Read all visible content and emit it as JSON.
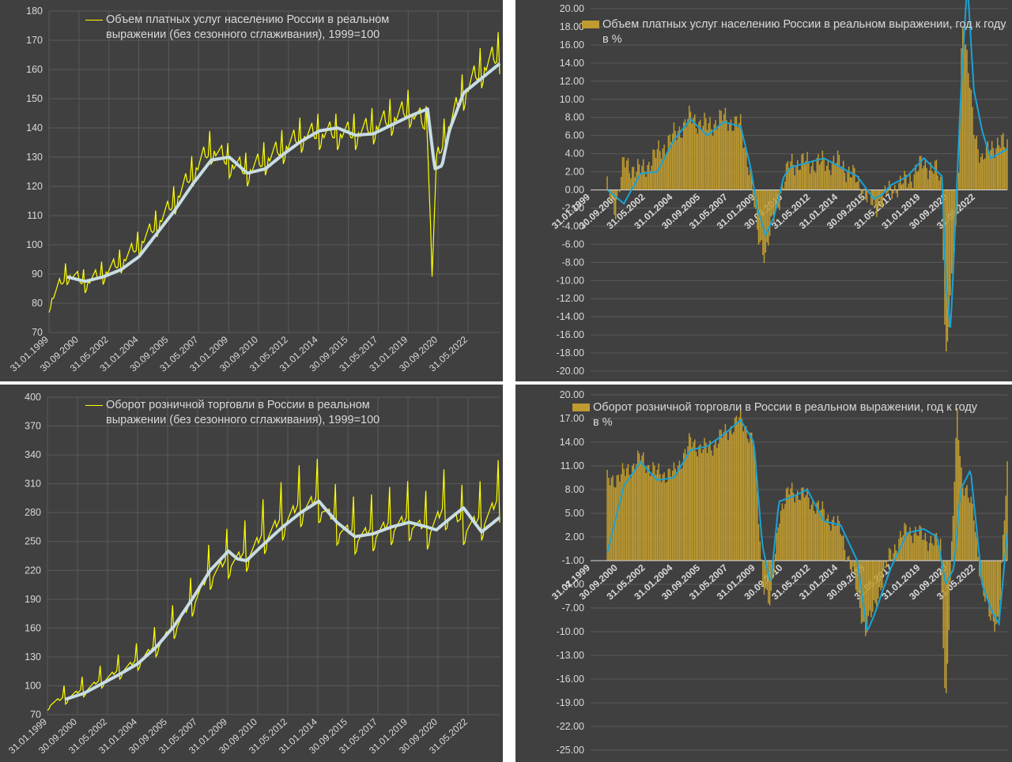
{
  "colors": {
    "background": "#404040",
    "grid": "#5a5a5a",
    "text": "#d9d9d9",
    "level_series": "#ffff00",
    "trend_series": "#c8dde3",
    "bars": "#bf9b30",
    "trend_yoy": "#1aa3d4"
  },
  "chart_data": [
    {
      "id": "services_level",
      "type": "line",
      "x_tick_labels": [
        "31.01.1999",
        "30.09.2000",
        "31.05.2002",
        "31.01.2004",
        "30.09.2005",
        "31.05.2007",
        "31.01.2009",
        "30.09.2010",
        "31.05.2012",
        "31.01.2014",
        "30.09.2015",
        "31.05.2017",
        "31.01.2019",
        "30.09.2020",
        "31.05.2022"
      ],
      "ylim": [
        70,
        180
      ],
      "y_tick_labels": [
        "70",
        "80",
        "90",
        "100",
        "110",
        "120",
        "130",
        "140",
        "150",
        "160",
        "170",
        "180"
      ],
      "grid": true,
      "legend_position": "top-left",
      "series": [
        {
          "name": "Объем платных услуг населению России в реальном выражении (без сезонного сглаживания), 1999=100",
          "kind": "monthly_raw",
          "x": [
            1999.0,
            2000.0,
            2001.0,
            2002.0,
            2003.0,
            2004.0,
            2005.0,
            2006.0,
            2007.0,
            2008.0,
            2009.0,
            2010.0,
            2011.0,
            2012.0,
            2013.0,
            2014.0,
            2015.0,
            2016.0,
            2017.0,
            2018.0,
            2019.0,
            2020.0,
            2020.25,
            2020.5,
            2021.0,
            2022.0,
            2023.0,
            2024.0
          ],
          "values": [
            80,
            90,
            87,
            90,
            94,
            100,
            107,
            115,
            125,
            133,
            128,
            125,
            129,
            133,
            137,
            138,
            138,
            138,
            140,
            143,
            146,
            140,
            90,
            128,
            138,
            152,
            160,
            165
          ]
        },
        {
          "name": "",
          "kind": "trend",
          "x": [
            2000.0,
            2001.0,
            2002.0,
            2003.0,
            2004.0,
            2005.0,
            2006.0,
            2007.0,
            2008.0,
            2009.0,
            2010.0,
            2011.0,
            2012.0,
            2013.0,
            2014.0,
            2015.0,
            2016.0,
            2017.0,
            2018.0,
            2019.0,
            2020.0,
            2020.4,
            2020.8,
            2021.2,
            2022.0,
            2023.0,
            2024.0
          ],
          "values": [
            89,
            87.5,
            89,
            91.5,
            96,
            104,
            112,
            121,
            129,
            130,
            124.5,
            126,
            131,
            135.5,
            139,
            140,
            137.5,
            138,
            141,
            144,
            146.5,
            126,
            127,
            139,
            152,
            157,
            162
          ]
        }
      ]
    },
    {
      "id": "services_yoy",
      "type": "bar",
      "x_tick_labels": [
        "31.01.1999",
        "30.09.2000",
        "31.05.2002",
        "31.01.2004",
        "30.09.2005",
        "31.05.2007",
        "31.01.2009",
        "30.09.2010",
        "31.05.2012",
        "31.01.2014",
        "30.09.2015",
        "31.05.2017",
        "31.01.2019",
        "30.09.2020",
        "31.05.2022"
      ],
      "ylim": [
        -20,
        20
      ],
      "y_tick_labels": [
        "-20.00",
        "-18.00",
        "-16.00",
        "-14.00",
        "-12.00",
        "-10.00",
        "-8.00",
        "-6.00",
        "-4.00",
        "-2.00",
        "0.00",
        "2.00",
        "4.00",
        "6.00",
        "8.00",
        "10.00",
        "12.00",
        "14.00",
        "16.00",
        "18.00",
        "20.00"
      ],
      "grid": true,
      "legend_position": "top-left",
      "series": [
        {
          "name": "Объем платных услуг населению России в реальном выражении, год к году в %",
          "kind": "bars",
          "x": [
            2000.0,
            2000.5,
            2001.0,
            2002.0,
            2003.0,
            2004.0,
            2005.0,
            2006.0,
            2007.0,
            2008.0,
            2008.6,
            2009.0,
            2009.5,
            2010.0,
            2010.6,
            2011.0,
            2012.0,
            2013.0,
            2014.0,
            2015.0,
            2016.0,
            2016.5,
            2017.0,
            2018.0,
            2019.0,
            2019.8,
            2020.1,
            2020.3,
            2020.6,
            2021.0,
            2021.3,
            2021.6,
            2022.0,
            2022.5,
            2023.0,
            2024.0
          ],
          "values": [
            0,
            -2,
            3,
            2,
            4,
            6,
            8,
            7,
            8,
            7,
            2,
            -5,
            -7,
            -3,
            1,
            3,
            3,
            3,
            3,
            1,
            -2,
            -1,
            0,
            1,
            3,
            2,
            0,
            -19,
            -12,
            -3,
            19,
            14,
            7,
            3,
            5,
            5
          ]
        },
        {
          "name": "",
          "kind": "trend",
          "x": [
            2000.0,
            2001.0,
            2002.0,
            2003.0,
            2004.0,
            2005.0,
            2006.0,
            2007.0,
            2008.0,
            2008.6,
            2009.0,
            2009.5,
            2010.0,
            2010.6,
            2011.0,
            2012.0,
            2013.0,
            2014.0,
            2015.0,
            2016.0,
            2016.5,
            2017.0,
            2018.0,
            2019.0,
            2019.8,
            2020.1,
            2020.3,
            2020.6,
            2020.85,
            2021.2,
            2021.6,
            2022.0,
            2022.5,
            2023.0,
            2024.0
          ],
          "values": [
            0,
            -1.5,
            1.8,
            2,
            5.5,
            7.8,
            6,
            7.5,
            7,
            2.5,
            -2,
            -5,
            -3,
            1.5,
            2.5,
            3,
            3.5,
            2.5,
            1.5,
            -1,
            -0.5,
            0.5,
            1.5,
            3.5,
            2,
            1.5,
            -10,
            -15.5,
            -5,
            10,
            23,
            11,
            6.5,
            3.5,
            4.5
          ]
        }
      ]
    },
    {
      "id": "retail_level",
      "type": "line",
      "x_tick_labels": [
        "31.01.1999",
        "30.09.2000",
        "31.05.2002",
        "31.01.2004",
        "30.09.2005",
        "31.05.2007",
        "31.01.2009",
        "30.09.2010",
        "31.05.2012",
        "31.01.2014",
        "30.09.2015",
        "31.05.2017",
        "31.01.2019",
        "30.09.2020",
        "31.05.2022"
      ],
      "ylim": [
        70,
        400
      ],
      "y_tick_labels": [
        "70",
        "100",
        "130",
        "160",
        "190",
        "220",
        "250",
        "280",
        "310",
        "340",
        "370",
        "400"
      ],
      "grid": true,
      "legend_position": "top-left",
      "series": [
        {
          "name": "Оборот розничной торговли в России в реальном выражении (без сезонного сглаживания), 1999=100",
          "kind": "monthly_raw",
          "x": [
            1999.0,
            2000.0,
            2001.0,
            2002.0,
            2003.0,
            2004.0,
            2005.0,
            2006.0,
            2007.0,
            2008.0,
            2009.0,
            2010.0,
            2011.0,
            2012.0,
            2013.0,
            2014.0,
            2015.0,
            2016.0,
            2017.0,
            2018.0,
            2019.0,
            2020.0,
            2021.0,
            2022.0,
            2023.0,
            2024.0
          ],
          "values": [
            80,
            87,
            95,
            105,
            115,
            125,
            140,
            160,
            185,
            215,
            228,
            235,
            255,
            270,
            285,
            290,
            265,
            255,
            258,
            265,
            270,
            260,
            282,
            265,
            270,
            290
          ]
        },
        {
          "name": "",
          "kind": "trend",
          "x": [
            2000.0,
            2001.0,
            2002.0,
            2003.0,
            2004.0,
            2005.0,
            2006.0,
            2007.0,
            2008.0,
            2009.0,
            2009.5,
            2010.0,
            2011.0,
            2012.0,
            2013.0,
            2014.0,
            2015.0,
            2016.0,
            2017.0,
            2018.0,
            2019.0,
            2020.0,
            2020.5,
            2021.0,
            2022.0,
            2023.0,
            2024.0
          ],
          "values": [
            86,
            92,
            102,
            112,
            123,
            140,
            162,
            190,
            220,
            240,
            232,
            230,
            248,
            265,
            280,
            292,
            270,
            255,
            258,
            265,
            270,
            265,
            262,
            270,
            285,
            260,
            275
          ]
        }
      ]
    },
    {
      "id": "retail_yoy",
      "type": "bar",
      "x_tick_labels": [
        "31.01.1999",
        "30.09.2000",
        "31.05.2002",
        "31.01.2004",
        "30.09.2005",
        "31.05.2007",
        "31.01.2009",
        "30.09.2010",
        "31.05.2012",
        "31.01.2014",
        "30.09.2015",
        "31.05.2017",
        "31.01.2019",
        "30.09.2020",
        "31.05.2022"
      ],
      "ylim": [
        -25,
        20
      ],
      "y_tick_labels": [
        "-25.00",
        "-22.00",
        "-19.00",
        "-16.00",
        "-13.00",
        "-10.00",
        "-7.00",
        "-4.00",
        "-1.00",
        "2.00",
        "5.00",
        "8.00",
        "11.00",
        "14.00",
        "17.00",
        "20.00"
      ],
      "grid": true,
      "legend_position": "top-left",
      "series": [
        {
          "name": "Оборот розничной торговли в России в реальном выражении, год к году в %",
          "kind": "bars",
          "x": [
            2000.0,
            2001.0,
            2002.0,
            2003.0,
            2004.0,
            2005.0,
            2006.0,
            2007.0,
            2008.0,
            2008.8,
            2009.3,
            2009.8,
            2010.3,
            2011.0,
            2012.0,
            2013.0,
            2014.0,
            2015.0,
            2015.5,
            2016.0,
            2017.0,
            2018.0,
            2019.0,
            2020.0,
            2020.3,
            2020.7,
            2021.0,
            2021.3,
            2022.0,
            2022.5,
            2023.0,
            2023.5,
            2024.0
          ],
          "values": [
            9,
            10,
            12,
            10,
            10,
            14,
            13,
            15,
            17,
            14,
            -3,
            -7,
            5,
            8,
            7,
            5,
            3,
            -5,
            -10,
            -7,
            0,
            3,
            2,
            1,
            -20,
            2,
            18,
            9,
            5,
            -5,
            -8,
            -9,
            11
          ]
        },
        {
          "name": "",
          "kind": "trend",
          "x": [
            2000.0,
            2001.0,
            2002.0,
            2003.0,
            2004.0,
            2005.0,
            2006.0,
            2007.0,
            2008.0,
            2008.8,
            2009.3,
            2009.8,
            2010.3,
            2011.0,
            2012.0,
            2013.0,
            2014.0,
            2015.0,
            2015.6,
            2016.0,
            2017.0,
            2018.0,
            2019.0,
            2019.8,
            2020.3,
            2020.8,
            2021.2,
            2021.8,
            2022.5,
            2023.0,
            2023.5,
            2024.0
          ],
          "values": [
            0,
            8.5,
            11.5,
            9.2,
            9.5,
            13,
            13.5,
            15,
            16.8,
            14,
            1,
            -4,
            6.5,
            7,
            8,
            4,
            3.5,
            -1,
            -10,
            -8,
            -2,
            2.5,
            3,
            2,
            -4,
            -2,
            8,
            10.5,
            -4,
            -7,
            -9,
            2.5
          ]
        }
      ]
    }
  ]
}
